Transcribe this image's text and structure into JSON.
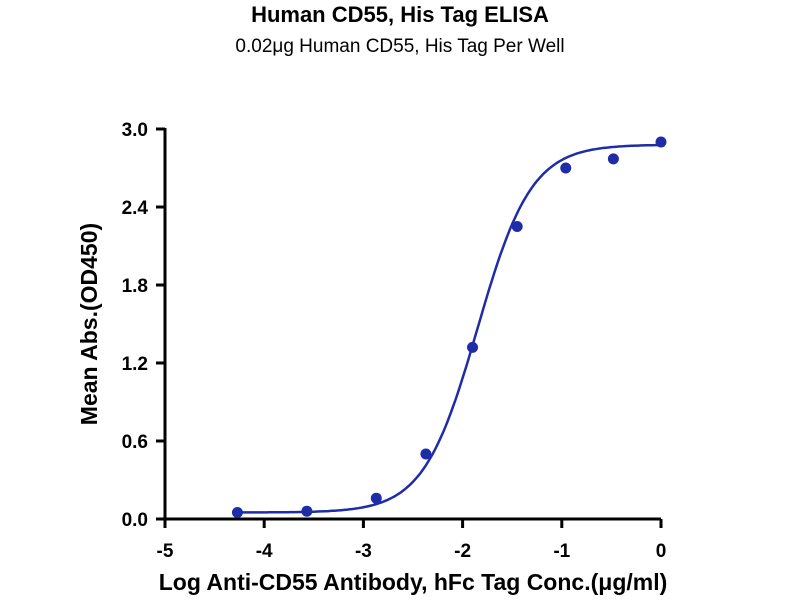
{
  "chart_data": {
    "type": "scatter",
    "title": "Human CD55, His Tag ELISA",
    "subtitle": "0.02μg Human CD55, His Tag Per Well",
    "xlabel": "Log Anti-CD55 Antibody, hFc Tag Conc.(μg/ml)",
    "ylabel": "Mean Abs.(OD450)",
    "xlim": [
      -5,
      0
    ],
    "ylim": [
      0,
      3.0
    ],
    "x_ticks": [
      "-5",
      "-4",
      "-3",
      "-2",
      "-1",
      "0"
    ],
    "y_ticks": [
      "0.0",
      "0.6",
      "1.2",
      "1.8",
      "2.4",
      "3.0"
    ],
    "grid": false,
    "series": [
      {
        "points": [
          {
            "x": -4.27,
            "y": 0.05
          },
          {
            "x": -3.57,
            "y": 0.06
          },
          {
            "x": -2.87,
            "y": 0.16
          },
          {
            "x": -2.37,
            "y": 0.5
          },
          {
            "x": -1.9,
            "y": 1.32
          },
          {
            "x": -1.45,
            "y": 2.25
          },
          {
            "x": -0.96,
            "y": 2.7
          },
          {
            "x": -0.48,
            "y": 2.77
          },
          {
            "x": 0.0,
            "y": 2.9
          }
        ],
        "fit": {
          "type": "4PL",
          "bottom": 0.05,
          "top": 2.88,
          "logEC50": -1.85,
          "hill": 1.6
        }
      }
    ],
    "colors": {
      "series": "#1f2ca8"
    }
  }
}
